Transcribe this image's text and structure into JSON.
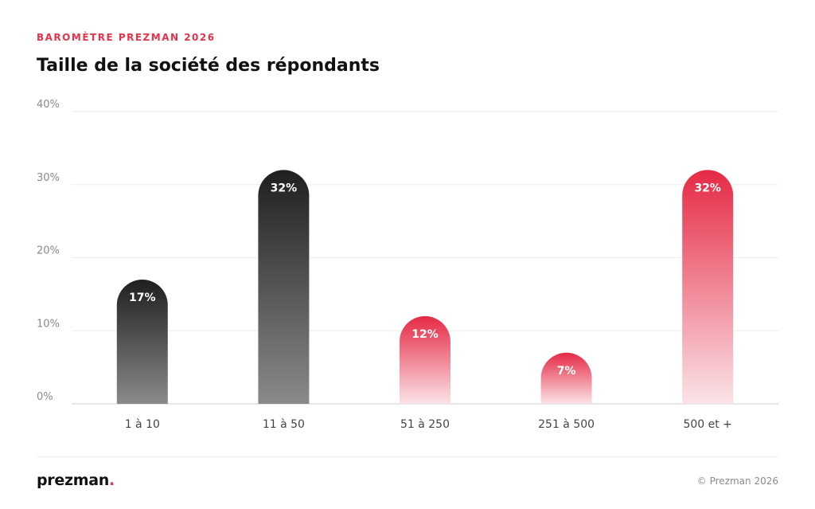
{
  "header": {
    "kicker": "BAROMÈTRE PREZMAN 2026",
    "title": "Taille de la société des répondants"
  },
  "chart_data": {
    "type": "bar",
    "categories": [
      "1 à 10",
      "11 à 50",
      "51 à 250",
      "251 à 500",
      "500 et +"
    ],
    "values": [
      17,
      32,
      12,
      7,
      32
    ],
    "data_labels": [
      "17%",
      "32%",
      "12%",
      "7%",
      "32%"
    ],
    "bar_colors": [
      "dark",
      "dark",
      "red",
      "red",
      "red"
    ],
    "ylim": [
      0,
      40
    ],
    "yticks": [
      "0%",
      "10%",
      "20%",
      "30%",
      "40%"
    ],
    "grid": true,
    "legend": "none",
    "colors": {
      "dark_top": "#1f1f1f",
      "dark_bottom": "#8a8a8a",
      "red_top": "#e52a45",
      "red_bottom": "#fbe3e7"
    }
  },
  "footer": {
    "logo_text": "prezman",
    "logo_dot": ".",
    "copyright": "© Prezman 2026"
  }
}
